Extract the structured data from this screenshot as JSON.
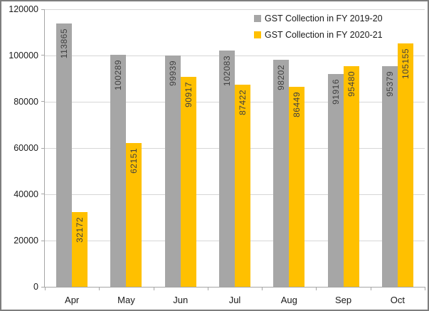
{
  "chart_data": {
    "type": "bar",
    "title": "",
    "categories": [
      "Apr",
      "May",
      "Jun",
      "Jul",
      "Aug",
      "Sep",
      "Oct"
    ],
    "series": [
      {
        "name": "GST Collection in FY 2019-20",
        "color": "#a6a6a6",
        "values": [
          113865,
          100289,
          99939,
          102083,
          98202,
          91916,
          95379
        ]
      },
      {
        "name": "GST Collection in FY 2020-21",
        "color": "#ffc000",
        "values": [
          32172,
          62151,
          90917,
          87422,
          86449,
          95480,
          105155
        ]
      }
    ],
    "xlabel": "",
    "ylabel": "",
    "ylim": [
      0,
      120000
    ],
    "ytick_step": 20000,
    "ytick_labels": [
      "0",
      "20000",
      "40000",
      "60000",
      "80000",
      "100000",
      "120000"
    ],
    "grid": true,
    "legend_position": "top-right",
    "value_labels": "inside-end-rotated-90ccw",
    "style": {
      "gridline_color": "#d6d6d6",
      "axis_color": "#a6a6a6",
      "bar_label_color": "#3f3f3f",
      "axis_text_color": "#1a1a1a",
      "frame_border_color": "#7e7e7e",
      "background_color": "#ffffff"
    }
  }
}
